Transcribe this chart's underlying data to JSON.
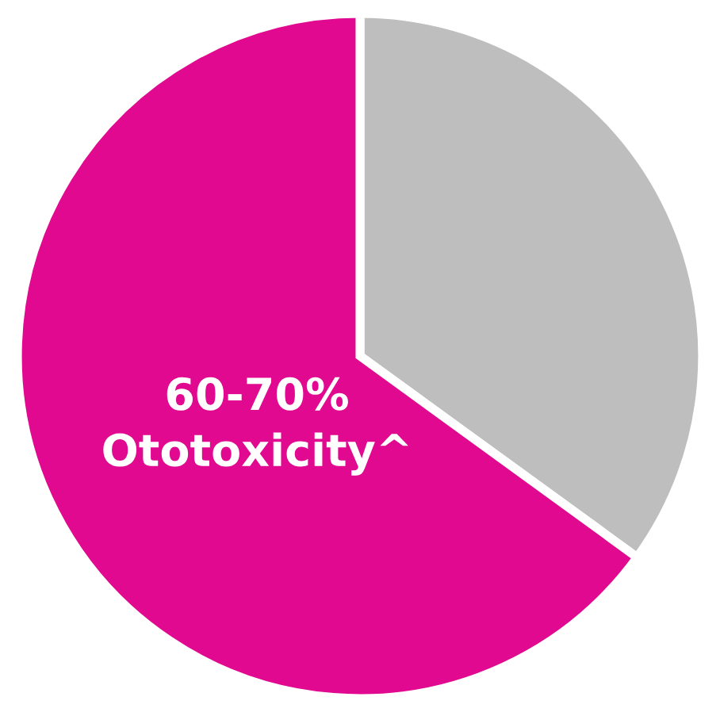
{
  "chart_data": {
    "type": "pie",
    "categories": [
      null,
      "Ototoxicity^"
    ],
    "values": [
      35,
      65
    ],
    "annotations": [
      "60-70%"
    ],
    "colors": [
      "#bebebe",
      "#e0098f"
    ]
  }
}
